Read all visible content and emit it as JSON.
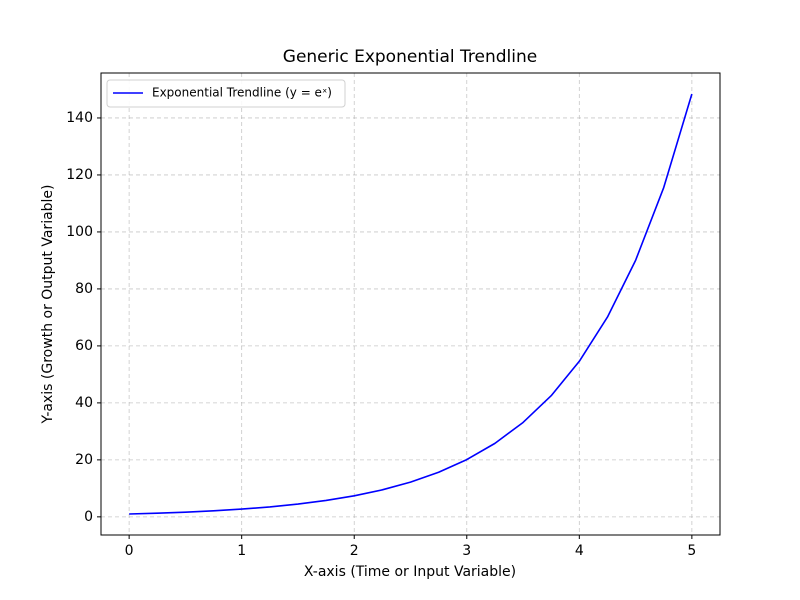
{
  "chart_data": {
    "type": "line",
    "title": "Generic Exponential Trendline",
    "x_label": "X-axis (Time or Input Variable)",
    "y_label": "Y-axis (Growth or Output Variable)",
    "x": [
      0,
      0.25,
      0.5,
      0.75,
      1,
      1.25,
      1.5,
      1.75,
      2,
      2.25,
      2.5,
      2.75,
      3,
      3.25,
      3.5,
      3.75,
      4,
      4.25,
      4.5,
      4.75,
      5
    ],
    "series": [
      {
        "name": "Exponential Trendline (y = eˣ)",
        "color": "#0000ff",
        "values": [
          1,
          1.28,
          1.65,
          2.12,
          2.72,
          3.49,
          4.48,
          5.75,
          7.39,
          9.49,
          12.18,
          15.64,
          20.09,
          25.79,
          33.12,
          42.52,
          54.6,
          70.11,
          90.02,
          115.58,
          148.41
        ]
      }
    ],
    "xlim": [
      -0.25,
      5.25
    ],
    "ylim": [
      -6.37,
      155.78
    ],
    "xticks": [
      0,
      1,
      2,
      3,
      4,
      5
    ],
    "yticks": [
      0,
      20,
      40,
      60,
      80,
      100,
      120,
      140
    ],
    "grid": true,
    "legend": "upper-left"
  }
}
